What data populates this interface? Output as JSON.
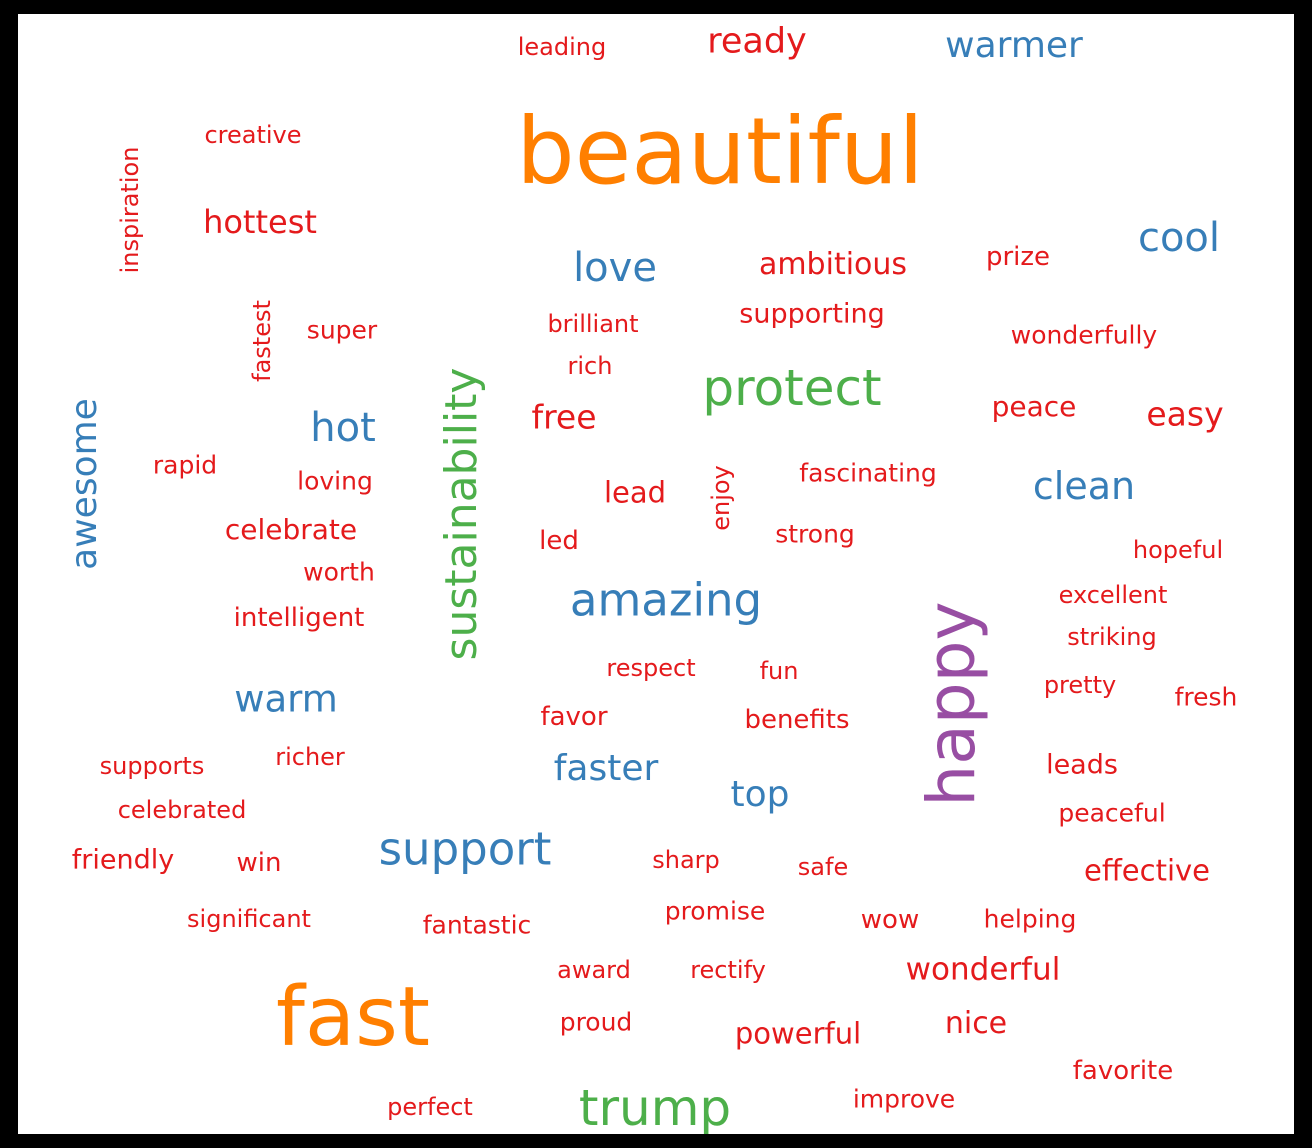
{
  "palette": {
    "red": "#e41a1c",
    "blue": "#377eb8",
    "green": "#4daf4a",
    "orange": "#ff7f00",
    "purple": "#984ea3"
  },
  "words": [
    {
      "text": "leading",
      "color": "red",
      "weight": 1
    },
    {
      "text": "ready",
      "color": "red",
      "weight": 2
    },
    {
      "text": "warmer",
      "color": "blue",
      "weight": 3
    },
    {
      "text": "beautiful",
      "color": "orange",
      "weight": 10
    },
    {
      "text": "creative",
      "color": "red",
      "weight": 1
    },
    {
      "text": "inspiration",
      "color": "red",
      "weight": 1
    },
    {
      "text": "hottest",
      "color": "red",
      "weight": 2
    },
    {
      "text": "love",
      "color": "blue",
      "weight": 3
    },
    {
      "text": "ambitious",
      "color": "red",
      "weight": 2
    },
    {
      "text": "prize",
      "color": "red",
      "weight": 1
    },
    {
      "text": "cool",
      "color": "blue",
      "weight": 3
    },
    {
      "text": "fastest",
      "color": "red",
      "weight": 1
    },
    {
      "text": "super",
      "color": "red",
      "weight": 1
    },
    {
      "text": "brilliant",
      "color": "red",
      "weight": 1
    },
    {
      "text": "supporting",
      "color": "red",
      "weight": 1
    },
    {
      "text": "wonderfully",
      "color": "red",
      "weight": 1
    },
    {
      "text": "rich",
      "color": "red",
      "weight": 1
    },
    {
      "text": "protect",
      "color": "green",
      "weight": 4
    },
    {
      "text": "sustainability",
      "color": "green",
      "weight": 4
    },
    {
      "text": "awesome",
      "color": "blue",
      "weight": 3
    },
    {
      "text": "hot",
      "color": "blue",
      "weight": 3
    },
    {
      "text": "free",
      "color": "red",
      "weight": 2
    },
    {
      "text": "peace",
      "color": "red",
      "weight": 1
    },
    {
      "text": "easy",
      "color": "red",
      "weight": 2
    },
    {
      "text": "rapid",
      "color": "red",
      "weight": 1
    },
    {
      "text": "loving",
      "color": "red",
      "weight": 1
    },
    {
      "text": "lead",
      "color": "red",
      "weight": 2
    },
    {
      "text": "enjoy",
      "color": "red",
      "weight": 1
    },
    {
      "text": "fascinating",
      "color": "red",
      "weight": 1
    },
    {
      "text": "clean",
      "color": "blue",
      "weight": 3
    },
    {
      "text": "celebrate",
      "color": "red",
      "weight": 1
    },
    {
      "text": "led",
      "color": "red",
      "weight": 1
    },
    {
      "text": "strong",
      "color": "red",
      "weight": 1
    },
    {
      "text": "hopeful",
      "color": "red",
      "weight": 1
    },
    {
      "text": "worth",
      "color": "red",
      "weight": 1
    },
    {
      "text": "amazing",
      "color": "blue",
      "weight": 3
    },
    {
      "text": "excellent",
      "color": "red",
      "weight": 1
    },
    {
      "text": "intelligent",
      "color": "red",
      "weight": 1
    },
    {
      "text": "striking",
      "color": "red",
      "weight": 1
    },
    {
      "text": "happy",
      "color": "purple",
      "weight": 5
    },
    {
      "text": "respect",
      "color": "red",
      "weight": 1
    },
    {
      "text": "fun",
      "color": "red",
      "weight": 1
    },
    {
      "text": "pretty",
      "color": "red",
      "weight": 1
    },
    {
      "text": "fresh",
      "color": "red",
      "weight": 1
    },
    {
      "text": "warm",
      "color": "blue",
      "weight": 3
    },
    {
      "text": "favor",
      "color": "red",
      "weight": 1
    },
    {
      "text": "benefits",
      "color": "red",
      "weight": 1
    },
    {
      "text": "supports",
      "color": "red",
      "weight": 1
    },
    {
      "text": "richer",
      "color": "red",
      "weight": 1
    },
    {
      "text": "faster",
      "color": "blue",
      "weight": 3
    },
    {
      "text": "leads",
      "color": "red",
      "weight": 1
    },
    {
      "text": "top",
      "color": "blue",
      "weight": 3
    },
    {
      "text": "celebrated",
      "color": "red",
      "weight": 1
    },
    {
      "text": "peaceful",
      "color": "red",
      "weight": 1
    },
    {
      "text": "support",
      "color": "blue",
      "weight": 4
    },
    {
      "text": "friendly",
      "color": "red",
      "weight": 1
    },
    {
      "text": "win",
      "color": "red",
      "weight": 1
    },
    {
      "text": "sharp",
      "color": "red",
      "weight": 1
    },
    {
      "text": "safe",
      "color": "red",
      "weight": 1
    },
    {
      "text": "effective",
      "color": "red",
      "weight": 2
    },
    {
      "text": "significant",
      "color": "red",
      "weight": 1
    },
    {
      "text": "fantastic",
      "color": "red",
      "weight": 1
    },
    {
      "text": "promise",
      "color": "red",
      "weight": 1
    },
    {
      "text": "wow",
      "color": "red",
      "weight": 1
    },
    {
      "text": "helping",
      "color": "red",
      "weight": 1
    },
    {
      "text": "award",
      "color": "red",
      "weight": 1
    },
    {
      "text": "rectify",
      "color": "red",
      "weight": 1
    },
    {
      "text": "wonderful",
      "color": "red",
      "weight": 2
    },
    {
      "text": "fast",
      "color": "orange",
      "weight": 10
    },
    {
      "text": "proud",
      "color": "red",
      "weight": 1
    },
    {
      "text": "powerful",
      "color": "red",
      "weight": 2
    },
    {
      "text": "nice",
      "color": "red",
      "weight": 2
    },
    {
      "text": "favorite",
      "color": "red",
      "weight": 1
    },
    {
      "text": "perfect",
      "color": "red",
      "weight": 1
    },
    {
      "text": "trump",
      "color": "green",
      "weight": 4
    },
    {
      "text": "improve",
      "color": "red",
      "weight": 1
    }
  ]
}
